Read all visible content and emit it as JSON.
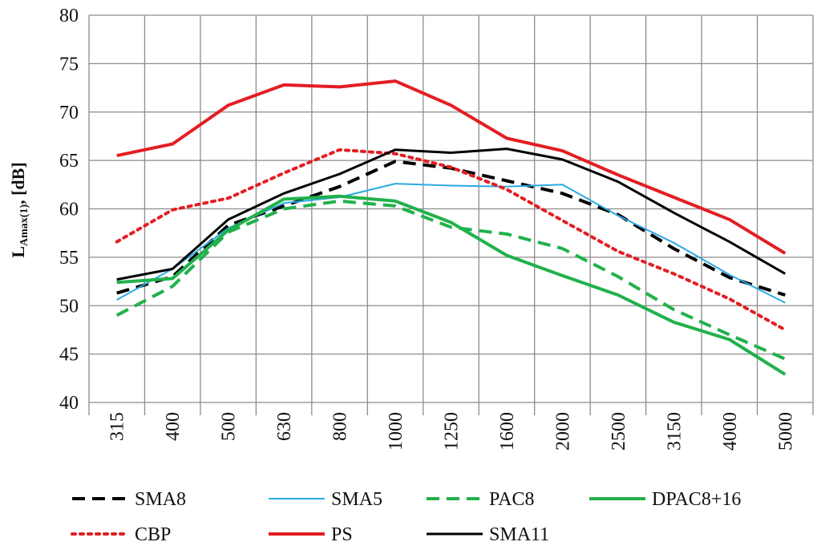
{
  "chart_data": {
    "type": "line",
    "title": "",
    "xlabel": "",
    "ylabel": {
      "main": "L",
      "sub": "Amax(1)",
      "unit": ", [dB]"
    },
    "categories": [
      "315",
      "400",
      "500",
      "630",
      "800",
      "1000",
      "1250",
      "1600",
      "2000",
      "2500",
      "3150",
      "4000",
      "5000"
    ],
    "ylim": [
      40,
      80
    ],
    "yticks": [
      40,
      45,
      50,
      55,
      60,
      65,
      70,
      75,
      80
    ],
    "grid": true,
    "legend_position": "bottom",
    "series": [
      {
        "name": "SMA8",
        "color": "#000000",
        "style": "dashed",
        "width": 4,
        "values": [
          51.3,
          53.0,
          58.3,
          60.3,
          62.3,
          64.9,
          64.2,
          62.9,
          61.6,
          59.4,
          55.9,
          52.9,
          51.1
        ]
      },
      {
        "name": "SMA5",
        "color": "#29ABE2",
        "style": "solid",
        "width": 2,
        "values": [
          50.6,
          53.8,
          58.0,
          60.6,
          61.2,
          62.6,
          62.4,
          62.3,
          62.5,
          59.3,
          56.5,
          53.2,
          50.3
        ]
      },
      {
        "name": "PAC8",
        "color": "#22B14C",
        "style": "dashed",
        "width": 4,
        "values": [
          49.0,
          52.0,
          57.6,
          60.0,
          60.8,
          60.3,
          58.1,
          57.4,
          55.9,
          53.0,
          49.6,
          47.0,
          44.5
        ]
      },
      {
        "name": "DPAC8+16",
        "color": "#22B14C",
        "style": "solid",
        "width": 4,
        "values": [
          52.4,
          52.8,
          57.8,
          61.0,
          61.3,
          60.8,
          58.6,
          55.2,
          53.1,
          51.1,
          48.3,
          46.5,
          42.9
        ]
      },
      {
        "name": "CBP",
        "color": "#E31E24",
        "style": "dotted",
        "width": 4,
        "values": [
          56.6,
          59.9,
          61.1,
          63.7,
          66.1,
          65.7,
          64.3,
          62.0,
          58.8,
          55.6,
          53.3,
          50.7,
          47.5
        ]
      },
      {
        "name": "PS",
        "color": "#E31E24",
        "style": "solid",
        "width": 4,
        "values": [
          65.5,
          66.7,
          70.7,
          72.8,
          72.6,
          73.2,
          70.7,
          67.3,
          66.0,
          63.5,
          61.2,
          58.9,
          55.4
        ]
      },
      {
        "name": "SMA11",
        "color": "#000000",
        "style": "solid",
        "width": 3,
        "values": [
          52.7,
          53.8,
          58.9,
          61.6,
          63.6,
          66.1,
          65.8,
          66.2,
          65.1,
          62.8,
          59.6,
          56.6,
          53.3
        ]
      }
    ]
  }
}
